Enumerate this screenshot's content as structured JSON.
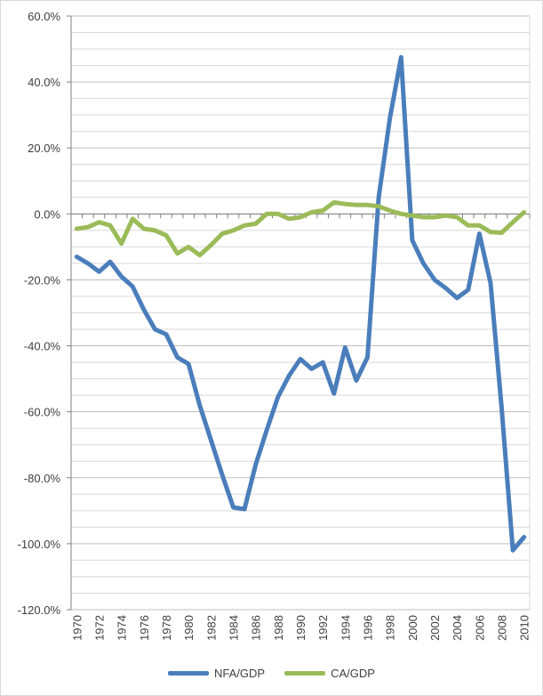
{
  "chart_data": {
    "type": "line",
    "title": "",
    "xlabel": "",
    "ylabel": "",
    "ylim": [
      -120,
      60
    ],
    "yticks": [
      60,
      40,
      20,
      0,
      -20,
      -40,
      -60,
      -80,
      -100,
      -120
    ],
    "yticklabels": [
      "60.0%",
      "40.0%",
      "20.0%",
      "0.0%",
      "-20.0%",
      "-40.0%",
      "-60.0%",
      "-80.0%",
      "-100.0%",
      "-120.0%"
    ],
    "x": [
      1970,
      1971,
      1972,
      1973,
      1974,
      1975,
      1976,
      1977,
      1978,
      1979,
      1980,
      1981,
      1982,
      1983,
      1984,
      1985,
      1986,
      1987,
      1988,
      1989,
      1990,
      1991,
      1992,
      1993,
      1994,
      1995,
      1996,
      1997,
      1998,
      1999,
      2000,
      2001,
      2002,
      2003,
      2004,
      2005,
      2006,
      2007,
      2008,
      2009,
      2010
    ],
    "xticklabels": [
      "1970",
      "1972",
      "1974",
      "1976",
      "1978",
      "1980",
      "1982",
      "1984",
      "1986",
      "1988",
      "1990",
      "1992",
      "1994",
      "1996",
      "1998",
      "2000",
      "2002",
      "2004",
      "2006",
      "2008",
      "2010"
    ],
    "grid": true,
    "legend_position": "bottom",
    "series": [
      {
        "name": "NFA/GDP",
        "color": "#4a7ebb",
        "values": [
          -13,
          -15,
          -17.5,
          -14.5,
          -19,
          -22,
          -29,
          -35,
          -36.5,
          -43.5,
          -45.5,
          -58,
          -68.5,
          -79,
          -89,
          -89.5,
          -76,
          -65.5,
          -55.5,
          -49,
          -44,
          -47,
          -45,
          -54.5,
          -40.5,
          -50.5,
          -43.5,
          5,
          29,
          47.5,
          -8,
          -15,
          -20,
          -22.5,
          -25.5,
          -23,
          -6,
          -21,
          -59,
          -102,
          -98
        ]
      },
      {
        "name": "CA/GDP",
        "color": "#9bbb59",
        "values": [
          -4.5,
          -4,
          -2.5,
          -3.5,
          -9,
          -1.5,
          -4.5,
          -5,
          -6.5,
          -12,
          -10,
          -12.5,
          -9.5,
          -6,
          -5,
          -3.5,
          -3,
          0,
          0,
          -1.5,
          -1,
          0.5,
          1,
          3.5,
          3,
          2.7,
          2.7,
          2.3,
          1,
          0,
          -0.5,
          -1,
          -1,
          -0.5,
          -1,
          -3.5,
          -3.5,
          -5.5,
          -5.7,
          -2.5,
          0.5
        ]
      }
    ]
  }
}
